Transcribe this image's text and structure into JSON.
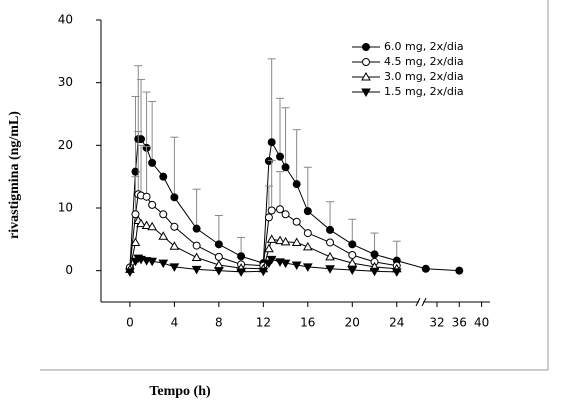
{
  "chart_data": {
    "type": "line",
    "x_label": "Tempo (h)",
    "y_label": "rivastigmina (ng/mL)",
    "x": [
      0,
      0.5,
      0.75,
      1,
      1.5,
      2,
      3,
      4,
      6,
      8,
      10,
      12,
      12.5,
      12.75,
      13.5,
      14,
      15,
      16,
      18,
      20,
      22,
      24,
      30,
      36
    ],
    "series": [
      {
        "name": "6.0 mg, 2x/dia",
        "color": "#000000",
        "marker": "circle",
        "filled": true,
        "values": [
          0.5,
          15.8,
          21,
          21,
          19.6,
          17.2,
          15,
          11.7,
          6.7,
          4.2,
          2.3,
          1.2,
          17.5,
          20.5,
          18.2,
          16.5,
          13.8,
          9.5,
          6.5,
          4.2,
          2.6,
          1.6,
          0.3,
          0
        ],
        "errors": [
          null,
          12,
          11.7,
          9.5,
          8.9,
          9.8,
          null,
          9.6,
          6.3,
          4.6,
          3,
          null,
          null,
          13.3,
          9.3,
          9.5,
          8.7,
          7,
          4.5,
          4,
          3.4,
          3.1,
          null,
          null
        ]
      },
      {
        "name": "4.5 mg, 2x/dia",
        "color": "#000000",
        "marker": "circle",
        "filled": false,
        "values": [
          0.5,
          9,
          12.2,
          12,
          11.8,
          10.5,
          9,
          7,
          4,
          2.2,
          1,
          0.8,
          8.5,
          9.6,
          9.8,
          9,
          7.8,
          6,
          4.5,
          2.5,
          1.4,
          0.8,
          null,
          null
        ],
        "errors": [
          null,
          6,
          10,
          8,
          8,
          null,
          null,
          null,
          null,
          null,
          null,
          null,
          5,
          8,
          6,
          null,
          null,
          null,
          null,
          null,
          null,
          null,
          null,
          null
        ]
      },
      {
        "name": "3.0 mg, 2x/dia",
        "color": "#000000",
        "marker": "triangle-up",
        "filled": false,
        "values": [
          0.2,
          4.5,
          8,
          7.5,
          7.2,
          7,
          5.5,
          3.9,
          2.1,
          0.9,
          0.4,
          0.3,
          3.5,
          5,
          4.8,
          4.6,
          4.5,
          3.8,
          2.2,
          1.2,
          0.6,
          0.3,
          null,
          null
        ]
      },
      {
        "name": "1.5 mg, 2x/dia",
        "color": "#000000",
        "marker": "triangle-down",
        "filled": true,
        "values": [
          -0.2,
          1.5,
          2,
          1.8,
          1.6,
          1.5,
          1.2,
          0.6,
          0.2,
          0,
          -0.2,
          -0.1,
          1.2,
          1.8,
          1.4,
          1.2,
          0.9,
          0.6,
          0.3,
          0.1,
          -0.1,
          -0.2,
          null,
          null
        ]
      }
    ],
    "xlim": [
      -2.6,
      41.5
    ],
    "x_break": [
      26,
      29.5
    ],
    "xticks": [
      0,
      4,
      8,
      12,
      16,
      20,
      24,
      32,
      36,
      40
    ],
    "ylim": [
      -5,
      40
    ],
    "yticks": [
      0,
      10,
      20,
      30,
      40
    ],
    "legend": "upper right"
  }
}
